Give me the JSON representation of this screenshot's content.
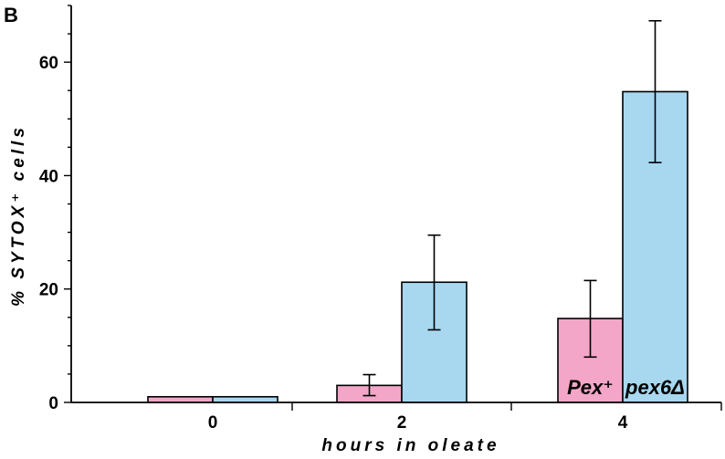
{
  "panel_label": "B",
  "chart_data": {
    "type": "bar",
    "xlabel": "hours in oleate",
    "ylabel": "% SYTOX⁺ cells",
    "ylim": [
      0,
      70
    ],
    "yticks": [
      0,
      20,
      40,
      60
    ],
    "categories": [
      "0",
      "2",
      "4"
    ],
    "series": [
      {
        "name": "Pex⁺",
        "color": "#f4a6c8",
        "values": [
          1,
          3,
          14.8
        ],
        "err_low": [
          null,
          1.2,
          8
        ],
        "err_high": [
          null,
          4.9,
          21.5
        ]
      },
      {
        "name": "pex6Δ",
        "color": "#a8d8f0",
        "values": [
          1,
          21.2,
          54.8
        ],
        "err_low": [
          null,
          12.8,
          42.3
        ],
        "err_high": [
          null,
          29.5,
          67.3
        ]
      }
    ],
    "legend": "inside bars, bottom of the 4-hour group",
    "grid": false
  }
}
